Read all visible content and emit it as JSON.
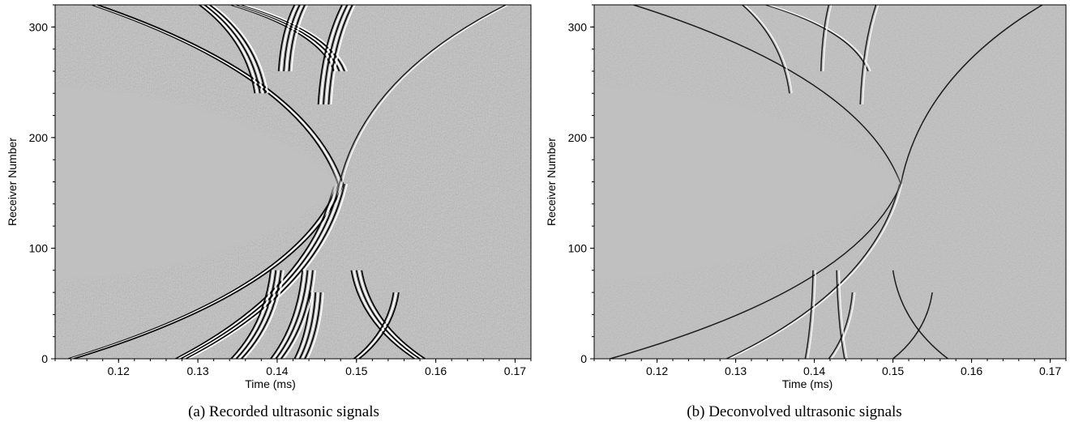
{
  "chart_data": [
    {
      "type": "heatmap",
      "caption": "(a) Recorded ultrasonic signals",
      "xlabel": "Time (ms)",
      "ylabel": "Receiver Number",
      "xlim": [
        0.112,
        0.172
      ],
      "ylim": [
        0,
        320
      ],
      "xticks": [
        0.12,
        0.13,
        0.14,
        0.15,
        0.16,
        0.17
      ],
      "xtick_labels": [
        "0.12",
        "0.13",
        "0.14",
        "0.15",
        "0.16",
        "0.17"
      ],
      "yticks": [
        0,
        100,
        200,
        300
      ],
      "ytick_labels": [
        "0",
        "100",
        "200",
        "300"
      ],
      "colormap": "grayscale",
      "background_value": "#c0c0c0",
      "muted_region": {
        "apex_time": 0.148,
        "center_receiver": 158,
        "receiver_span_at_left_edge": [
          72,
          245
        ]
      },
      "wavefronts": [
        {
          "apex_time": 0.148,
          "apex_receiver": 158,
          "side": "upper",
          "end_time": 0.117,
          "end_receiver": 320,
          "thickness": 3
        },
        {
          "apex_time": 0.148,
          "apex_receiver": 158,
          "side": "lower",
          "end_time": 0.114,
          "end_receiver": 0,
          "thickness": 3
        },
        {
          "apex_time": 0.148,
          "apex_receiver": 158,
          "side": "upper",
          "end_time": 0.169,
          "end_receiver": 320,
          "thickness": 2
        },
        {
          "apex_time": 0.148,
          "apex_receiver": 158,
          "side": "lower",
          "end_time": 0.128,
          "end_receiver": 0,
          "thickness": 6
        },
        {
          "apex_time": 0.138,
          "apex_receiver": 240,
          "side": "upper",
          "end_time": 0.131,
          "end_receiver": 320,
          "thickness": 6
        },
        {
          "apex_time": 0.148,
          "apex_receiver": 260,
          "side": "upper",
          "end_time": 0.135,
          "end_receiver": 320,
          "thickness": 6
        },
        {
          "apex_time": 0.141,
          "apex_receiver": 260,
          "side": "upper",
          "end_time": 0.143,
          "end_receiver": 320,
          "thickness": 6
        },
        {
          "apex_time": 0.146,
          "apex_receiver": 230,
          "side": "upper",
          "end_time": 0.149,
          "end_receiver": 320,
          "thickness": 6
        },
        {
          "apex_time": 0.14,
          "apex_receiver": 80,
          "side": "lower",
          "end_time": 0.135,
          "end_receiver": 0,
          "thickness": 6
        },
        {
          "apex_time": 0.145,
          "apex_receiver": 60,
          "side": "lower",
          "end_time": 0.143,
          "end_receiver": 0,
          "thickness": 6
        },
        {
          "apex_time": 0.144,
          "apex_receiver": 80,
          "side": "lower",
          "end_time": 0.14,
          "end_receiver": 0,
          "thickness": 6
        },
        {
          "apex_time": 0.15,
          "apex_receiver": 80,
          "side": "lower",
          "end_time": 0.158,
          "end_receiver": 0,
          "thickness": 5
        },
        {
          "apex_time": 0.155,
          "apex_receiver": 60,
          "side": "lower",
          "end_time": 0.15,
          "end_receiver": 0,
          "thickness": 3
        }
      ]
    },
    {
      "type": "heatmap",
      "caption": "(b) Deconvolved ultrasonic signals",
      "xlabel": "Time (ms)",
      "ylabel": "Receiver Number",
      "xlim": [
        0.112,
        0.172
      ],
      "ylim": [
        0,
        320
      ],
      "xticks": [
        0.12,
        0.13,
        0.14,
        0.15,
        0.16,
        0.17
      ],
      "xtick_labels": [
        "0.12",
        "0.13",
        "0.14",
        "0.15",
        "0.16",
        "0.17"
      ],
      "yticks": [
        0,
        100,
        200,
        300
      ],
      "ytick_labels": [
        "0",
        "100",
        "200",
        "300"
      ],
      "colormap": "grayscale",
      "background_value": "#c0c0c0",
      "muted_region": {
        "apex_time": 0.151,
        "center_receiver": 158,
        "receiver_span_at_left_edge": [
          72,
          245
        ]
      },
      "wavefronts": [
        {
          "apex_time": 0.151,
          "apex_receiver": 158,
          "side": "upper",
          "end_time": 0.117,
          "end_receiver": 320,
          "thickness": 1
        },
        {
          "apex_time": 0.151,
          "apex_receiver": 158,
          "side": "lower",
          "end_time": 0.114,
          "end_receiver": 0,
          "thickness": 1
        },
        {
          "apex_time": 0.151,
          "apex_receiver": 158,
          "side": "upper",
          "end_time": 0.169,
          "end_receiver": 320,
          "thickness": 1
        },
        {
          "apex_time": 0.151,
          "apex_receiver": 158,
          "side": "lower",
          "end_time": 0.129,
          "end_receiver": 0,
          "thickness": 2
        },
        {
          "apex_time": 0.137,
          "apex_receiver": 240,
          "side": "upper",
          "end_time": 0.131,
          "end_receiver": 320,
          "thickness": 2
        },
        {
          "apex_time": 0.147,
          "apex_receiver": 260,
          "side": "upper",
          "end_time": 0.134,
          "end_receiver": 320,
          "thickness": 2
        },
        {
          "apex_time": 0.141,
          "apex_receiver": 260,
          "side": "upper",
          "end_time": 0.142,
          "end_receiver": 320,
          "thickness": 2
        },
        {
          "apex_time": 0.146,
          "apex_receiver": 230,
          "side": "upper",
          "end_time": 0.148,
          "end_receiver": 320,
          "thickness": 2
        },
        {
          "apex_time": 0.14,
          "apex_receiver": 80,
          "side": "lower",
          "end_time": 0.139,
          "end_receiver": 0,
          "thickness": 2
        },
        {
          "apex_time": 0.145,
          "apex_receiver": 60,
          "side": "lower",
          "end_time": 0.142,
          "end_receiver": 0,
          "thickness": 2
        },
        {
          "apex_time": 0.143,
          "apex_receiver": 80,
          "side": "lower",
          "end_time": 0.144,
          "end_receiver": 0,
          "thickness": 2
        },
        {
          "apex_time": 0.15,
          "apex_receiver": 80,
          "side": "lower",
          "end_time": 0.157,
          "end_receiver": 0,
          "thickness": 1
        },
        {
          "apex_time": 0.155,
          "apex_receiver": 60,
          "side": "lower",
          "end_time": 0.15,
          "end_receiver": 0,
          "thickness": 1
        }
      ]
    }
  ]
}
